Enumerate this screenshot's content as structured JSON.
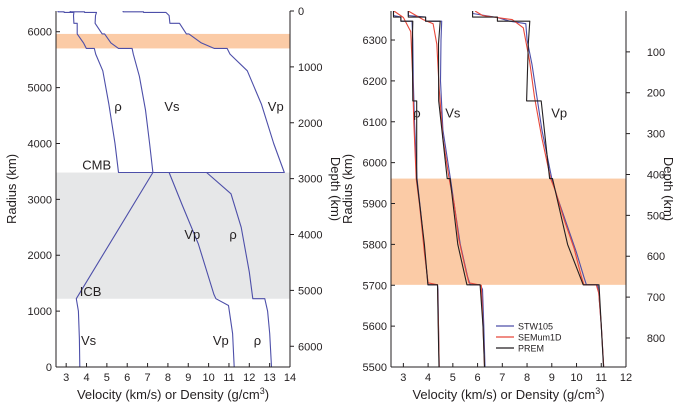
{
  "chart_data": [
    {
      "type": "line",
      "xlabel": "Velocity (km/s) or Density (g/cm",
      "xlabel_sup": "3",
      "xlabel_end": ")",
      "ylabel": "Radius (km)",
      "y2label": "Depth (km)",
      "xlim": [
        2.5,
        14
      ],
      "ylim": [
        0,
        6371
      ],
      "xticks": [
        "3",
        "4",
        "5",
        "6",
        "7",
        "8",
        "9",
        "10",
        "11",
        "12",
        "13",
        "14"
      ],
      "yticks": [
        "0",
        "1000",
        "2000",
        "3000",
        "4000",
        "5000",
        "6000"
      ],
      "y2ticks": [
        "0",
        "1000",
        "2000",
        "3000",
        "4000",
        "5000",
        "6000"
      ],
      "bands": [
        {
          "from": 5701,
          "to": 5961,
          "color": "#fbcba6"
        },
        {
          "from": 1221.5,
          "to": 3480,
          "color": "#e6e7e8"
        }
      ],
      "annotations": [
        {
          "text": "CMB",
          "x": 4.5,
          "y": 3530
        },
        {
          "text": "ICB",
          "x": 4.2,
          "y": 1270
        },
        {
          "text": "ρ",
          "x": 5.55,
          "y": 4580
        },
        {
          "text": "Vs",
          "x": 8.2,
          "y": 4580
        },
        {
          "text": "Vp",
          "x": 13.3,
          "y": 4580
        },
        {
          "text": "Vp",
          "x": 9.2,
          "y": 2290
        },
        {
          "text": "ρ",
          "x": 11.2,
          "y": 2290
        },
        {
          "text": "Vs",
          "x": 4.1,
          "y": 390
        },
        {
          "text": "Vp",
          "x": 10.6,
          "y": 390
        },
        {
          "text": "ρ",
          "x": 12.4,
          "y": 390
        }
      ],
      "series": [
        {
          "label": "Vp",
          "color": "#4d4fa9",
          "points": [
            [
              11.26,
              0
            ],
            [
              11.18,
              600
            ],
            [
              10.98,
              1100
            ],
            [
              10.36,
              1221.5
            ],
            [
              10.26,
              1300
            ],
            [
              9.5,
              2200
            ],
            [
              8.7,
              2900
            ],
            [
              8.06,
              3480
            ],
            [
              13.72,
              3480
            ],
            [
              13.2,
              4000
            ],
            [
              12.6,
              4700
            ],
            [
              11.9,
              5300
            ],
            [
              11.05,
              5600
            ],
            [
              10.91,
              5701
            ],
            [
              10.27,
              5701
            ],
            [
              9.64,
              5800
            ],
            [
              9.03,
              5961
            ],
            [
              8.91,
              5961
            ],
            [
              8.57,
              6151
            ],
            [
              8.1,
              6151
            ],
            [
              8.06,
              6291
            ],
            [
              7.9,
              6346
            ],
            [
              6.8,
              6346
            ],
            [
              6.8,
              6356
            ],
            [
              5.8,
              6356
            ],
            [
              5.8,
              6371
            ]
          ]
        },
        {
          "label": "Vs",
          "color": "#4d4fa9",
          "points": [
            [
              3.67,
              0
            ],
            [
              3.65,
              500
            ],
            [
              3.6,
              1000
            ],
            [
              3.5,
              1221.5
            ],
            [
              7.26,
              3480
            ],
            [
              7.1,
              4000
            ],
            [
              6.9,
              4600
            ],
            [
              6.6,
              5200
            ],
            [
              6.3,
              5600
            ],
            [
              6.24,
              5701
            ],
            [
              5.57,
              5701
            ],
            [
              5.2,
              5800
            ],
            [
              4.89,
              5961
            ],
            [
              4.77,
              5961
            ],
            [
              4.42,
              6151
            ],
            [
              4.44,
              6291
            ],
            [
              4.49,
              6346
            ],
            [
              3.9,
              6346
            ],
            [
              3.9,
              6356
            ],
            [
              3.2,
              6356
            ],
            [
              3.2,
              6371
            ]
          ]
        },
        {
          "label": "ρ",
          "color": "#4d4fa9",
          "points": [
            [
              13.09,
              0
            ],
            [
              13.0,
              600
            ],
            [
              12.9,
              1000
            ],
            [
              12.76,
              1221.5
            ],
            [
              12.17,
              1221.5
            ],
            [
              12.0,
              1700
            ],
            [
              11.6,
              2500
            ],
            [
              11.1,
              3100
            ],
            [
              9.9,
              3480
            ],
            [
              5.57,
              3480
            ],
            [
              5.4,
              4000
            ],
            [
              5.1,
              4700
            ],
            [
              4.8,
              5300
            ],
            [
              4.45,
              5600
            ],
            [
              4.38,
              5701
            ],
            [
              3.99,
              5701
            ],
            [
              3.85,
              5800
            ],
            [
              3.54,
              5961
            ],
            [
              3.54,
              6151
            ],
            [
              3.38,
              6151
            ],
            [
              3.36,
              6291
            ],
            [
              3.38,
              6346
            ],
            [
              2.9,
              6346
            ],
            [
              2.9,
              6356
            ],
            [
              2.6,
              6356
            ],
            [
              2.6,
              6371
            ]
          ]
        }
      ]
    },
    {
      "type": "line",
      "xlabel": "Velocity (km/s) or Density (g/cm",
      "xlabel_sup": "3",
      "xlabel_end": ")",
      "ylabel": "Radius (km)",
      "y2label": "Depth (km)",
      "xlim": [
        2.5,
        12
      ],
      "ylim": [
        5500,
        6371
      ],
      "xticks": [
        "3",
        "4",
        "5",
        "6",
        "7",
        "8",
        "9",
        "10",
        "11",
        "12"
      ],
      "yticks": [
        "5500",
        "5600",
        "5700",
        "5800",
        "5900",
        "6000",
        "6100",
        "6200",
        "6300"
      ],
      "y2ticks": [
        "100",
        "200",
        "300",
        "400",
        "500",
        "600",
        "700",
        "800"
      ],
      "bands": [
        {
          "from": 5701,
          "to": 5961,
          "color": "#fbcba6"
        }
      ],
      "annotations": [
        {
          "text": "ρ",
          "x": 3.55,
          "y": 6110
        },
        {
          "text": "Vs",
          "x": 5.0,
          "y": 6110
        },
        {
          "text": "Vp",
          "x": 9.3,
          "y": 6110
        }
      ],
      "legend": {
        "placement": "bottom-right",
        "entries": [
          {
            "label": "STW105",
            "color": "#4d4fa9"
          },
          {
            "label": "SEMum1D",
            "color": "#e8483a"
          },
          {
            "label": "PREM",
            "color": "#231f20"
          }
        ]
      },
      "series": [
        {
          "label": "STW105",
          "quantity": "Vp",
          "color": "#4d4fa9",
          "points": [
            [
              11.1,
              5500
            ],
            [
              11.0,
              5600
            ],
            [
              10.9,
              5680
            ],
            [
              10.85,
              5701
            ],
            [
              10.4,
              5701
            ],
            [
              10.3,
              5720
            ],
            [
              10.0,
              5780
            ],
            [
              9.6,
              5850
            ],
            [
              9.2,
              5920
            ],
            [
              9.0,
              5961
            ],
            [
              8.6,
              6080
            ],
            [
              8.2,
              6240
            ],
            [
              8.0,
              6300
            ],
            [
              7.95,
              6340
            ],
            [
              7.3,
              6346
            ],
            [
              6.8,
              6355
            ],
            [
              5.8,
              6365
            ],
            [
              5.8,
              6371
            ]
          ]
        },
        {
          "label": "STW105",
          "quantity": "Vs",
          "color": "#4d4fa9",
          "points": [
            [
              6.3,
              5500
            ],
            [
              6.25,
              5600
            ],
            [
              6.2,
              5690
            ],
            [
              6.1,
              5701
            ],
            [
              5.7,
              5701
            ],
            [
              5.6,
              5720
            ],
            [
              5.3,
              5800
            ],
            [
              5.1,
              5880
            ],
            [
              4.9,
              5961
            ],
            [
              4.6,
              6080
            ],
            [
              4.5,
              6200
            ],
            [
              4.52,
              6300
            ],
            [
              4.55,
              6346
            ],
            [
              3.9,
              6346
            ],
            [
              3.9,
              6356
            ],
            [
              3.2,
              6360
            ],
            [
              3.2,
              6371
            ]
          ]
        },
        {
          "label": "STW105",
          "quantity": "ρ",
          "color": "#4d4fa9",
          "points": [
            [
              4.45,
              5500
            ],
            [
              4.42,
              5600
            ],
            [
              4.4,
              5690
            ],
            [
              4.38,
              5701
            ],
            [
              4.0,
              5701
            ],
            [
              3.9,
              5760
            ],
            [
              3.7,
              5880
            ],
            [
              3.55,
              5961
            ],
            [
              3.45,
              6100
            ],
            [
              3.4,
              6200
            ],
            [
              3.38,
              6300
            ],
            [
              3.35,
              6346
            ],
            [
              2.9,
              6346
            ],
            [
              2.9,
              6356
            ],
            [
              2.6,
              6360
            ],
            [
              2.6,
              6371
            ]
          ]
        },
        {
          "label": "SEMum1D",
          "quantity": "Vp",
          "color": "#e8483a",
          "points": [
            [
              11.1,
              5500
            ],
            [
              11.0,
              5600
            ],
            [
              10.9,
              5680
            ],
            [
              10.8,
              5701
            ],
            [
              10.3,
              5701
            ],
            [
              10.2,
              5720
            ],
            [
              9.9,
              5790
            ],
            [
              9.5,
              5860
            ],
            [
              9.15,
              5930
            ],
            [
              8.95,
              5961
            ],
            [
              8.6,
              6060
            ],
            [
              8.3,
              6160
            ],
            [
              8.1,
              6250
            ],
            [
              7.85,
              6330
            ],
            [
              7.4,
              6350
            ],
            [
              6.2,
              6360
            ],
            [
              5.9,
              6371
            ]
          ]
        },
        {
          "label": "SEMum1D",
          "quantity": "Vs",
          "color": "#e8483a",
          "points": [
            [
              6.28,
              5500
            ],
            [
              6.22,
              5600
            ],
            [
              6.15,
              5700
            ],
            [
              5.65,
              5706
            ],
            [
              5.55,
              5730
            ],
            [
              5.25,
              5810
            ],
            [
              5.05,
              5900
            ],
            [
              4.85,
              5961
            ],
            [
              4.6,
              6060
            ],
            [
              4.45,
              6180
            ],
            [
              4.35,
              6290
            ],
            [
              4.2,
              6340
            ],
            [
              3.8,
              6350
            ],
            [
              3.2,
              6371
            ]
          ]
        },
        {
          "label": "SEMum1D",
          "quantity": "ρ",
          "color": "#e8483a",
          "points": [
            [
              4.45,
              5500
            ],
            [
              4.42,
              5600
            ],
            [
              4.38,
              5701
            ],
            [
              4.0,
              5706
            ],
            [
              3.85,
              5780
            ],
            [
              3.65,
              5900
            ],
            [
              3.52,
              5961
            ],
            [
              3.42,
              6100
            ],
            [
              3.37,
              6220
            ],
            [
              3.3,
              6320
            ],
            [
              3.0,
              6355
            ],
            [
              2.62,
              6371
            ]
          ]
        },
        {
          "label": "PREM",
          "quantity": "Vp",
          "color": "#231f20",
          "points": [
            [
              11.09,
              5500
            ],
            [
              11.0,
              5600
            ],
            [
              10.91,
              5701
            ],
            [
              10.27,
              5701
            ],
            [
              9.64,
              5800
            ],
            [
              9.03,
              5961
            ],
            [
              8.91,
              5961
            ],
            [
              8.57,
              6151
            ],
            [
              7.98,
              6151
            ],
            [
              8.05,
              6291
            ],
            [
              8.11,
              6346
            ],
            [
              6.8,
              6346
            ],
            [
              6.8,
              6356
            ],
            [
              5.8,
              6356
            ],
            [
              5.8,
              6371
            ]
          ]
        },
        {
          "label": "PREM",
          "quantity": "Vs",
          "color": "#231f20",
          "points": [
            [
              6.28,
              5500
            ],
            [
              6.22,
              5600
            ],
            [
              6.1,
              5701
            ],
            [
              5.57,
              5701
            ],
            [
              5.2,
              5800
            ],
            [
              4.89,
              5961
            ],
            [
              4.77,
              5961
            ],
            [
              4.43,
              6151
            ],
            [
              4.42,
              6291
            ],
            [
              4.49,
              6346
            ],
            [
              3.9,
              6346
            ],
            [
              3.9,
              6356
            ],
            [
              3.2,
              6356
            ],
            [
              3.2,
              6371
            ]
          ]
        },
        {
          "label": "PREM",
          "quantity": "ρ",
          "color": "#231f20",
          "points": [
            [
              4.44,
              5500
            ],
            [
              4.41,
              5600
            ],
            [
              4.38,
              5701
            ],
            [
              3.99,
              5701
            ],
            [
              3.85,
              5800
            ],
            [
              3.54,
              5961
            ],
            [
              3.54,
              6151
            ],
            [
              3.38,
              6151
            ],
            [
              3.36,
              6291
            ],
            [
              3.38,
              6346
            ],
            [
              2.9,
              6346
            ],
            [
              2.9,
              6356
            ],
            [
              2.6,
              6356
            ],
            [
              2.6,
              6371
            ]
          ]
        }
      ]
    }
  ]
}
